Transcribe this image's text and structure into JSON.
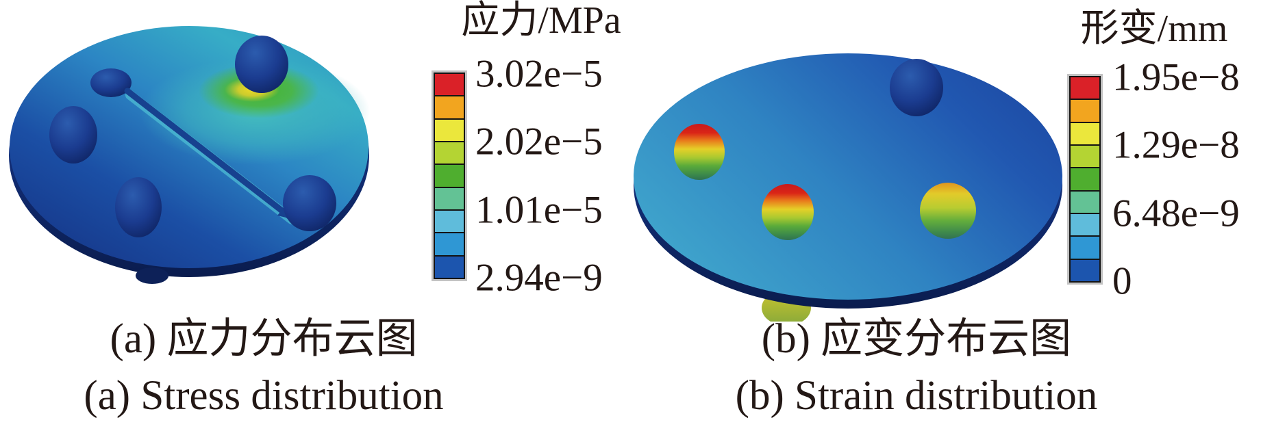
{
  "panel_a": {
    "caption_zh": "(a) 应力分布云图",
    "caption_en": "(a) Stress distribution",
    "colorbar": {
      "title": "应力/MPa",
      "tick_labels": [
        "3.02e−5",
        "2.02e−5",
        "1.01e−5",
        "2.94e−9"
      ],
      "segment_colors": [
        "#da2128",
        "#f2a51f",
        "#ebe73c",
        "#b4d433",
        "#4fae2f",
        "#63c295",
        "#5fbcdb",
        "#2f97d4",
        "#1c55ae"
      ]
    }
  },
  "panel_b": {
    "caption_zh": "(b) 应变分布云图",
    "caption_en": "(b) Strain distribution",
    "colorbar": {
      "title": "形变/mm",
      "tick_labels": [
        "1.95e−8",
        "1.29e−8",
        "6.48e−9",
        "0"
      ],
      "segment_colors": [
        "#da2128",
        "#f2a51f",
        "#ebe73c",
        "#b4d433",
        "#4fae2f",
        "#63c295",
        "#5fbcdb",
        "#2f97d4",
        "#1c55ae"
      ]
    }
  },
  "chart_data": [
    {
      "type": "heatmap",
      "subtype": "3d-fem-contour-plot",
      "title": "(a) 应力分布云图 / (a) Stress distribution",
      "colorbar_title": "应力/MPa",
      "colorbar_tick_labels": [
        "3.02e−5",
        "2.02e−5",
        "1.01e−5",
        "2.94e−9"
      ],
      "value_range": [
        2.94e-09,
        3.02e-05
      ],
      "units": "MPa",
      "palette_top_to_bottom": [
        "#da2128",
        "#f2a51f",
        "#ebe73c",
        "#b4d433",
        "#4fae2f",
        "#63c295",
        "#5fbcdb",
        "#2f97d4",
        "#1c55ae"
      ],
      "legend_position": "right",
      "content": "Tilted circular plate with four dark-blue hemispherical bumps, one small flattened bump and a diagonal grooved arrow; yellow-green stress hotspot beside the upper sphere, remainder blue to teal (low stress)."
    },
    {
      "type": "heatmap",
      "subtype": "3d-fem-contour-plot",
      "title": "(b) 应变分布云图 / (b) Strain distribution",
      "colorbar_title": "形变/mm",
      "colorbar_tick_labels": [
        "1.95e−8",
        "1.29e−8",
        "6.48e−9",
        "0"
      ],
      "value_range": [
        0,
        1.95e-08
      ],
      "units": "mm",
      "palette_top_to_bottom": [
        "#da2128",
        "#f2a51f",
        "#ebe73c",
        "#b4d433",
        "#4fae2f",
        "#63c295",
        "#5fbcdb",
        "#2f97d4",
        "#1c55ae"
      ],
      "legend_position": "right",
      "content": "Tilted circular plate in near-uniform blue (low strain) with one dark-blue sphere and three rainbow-colored spheres (red/orange tops fading to green) showing maximum deformation; small yellow-green bump under lower rim."
    }
  ]
}
